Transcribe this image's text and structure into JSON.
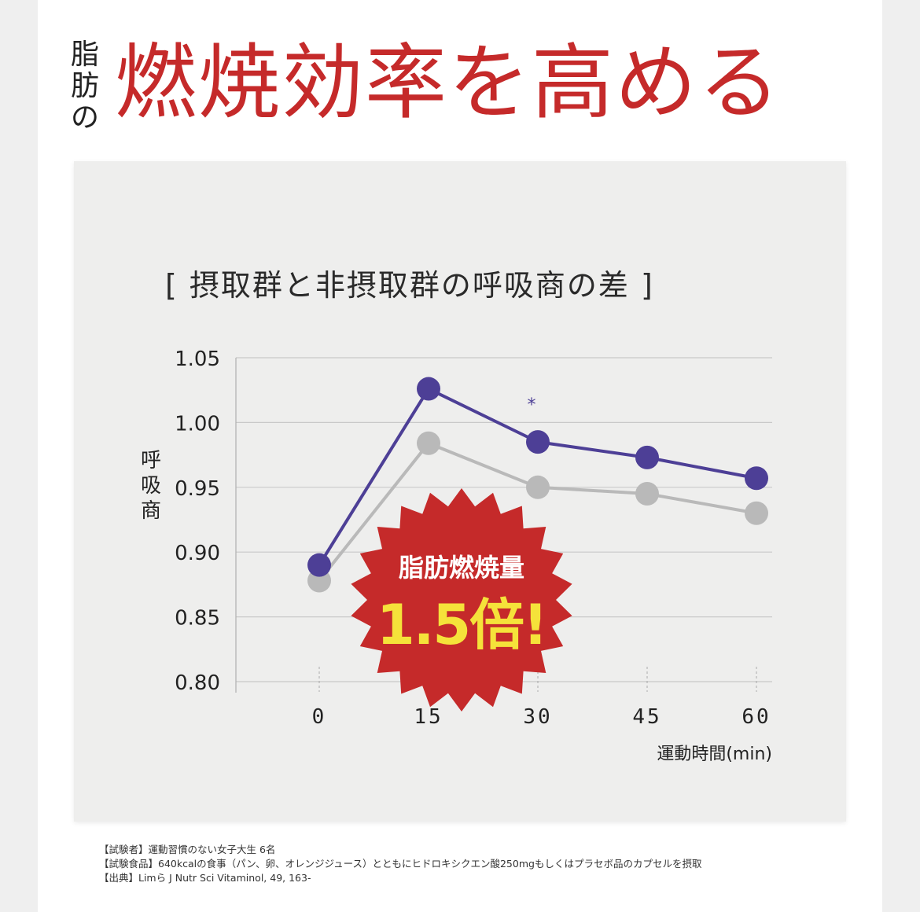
{
  "headline": {
    "small": [
      "脂",
      "肪",
      "の"
    ],
    "big": "燃焼効率を高める"
  },
  "colors": {
    "accent_red": "#c52a2a",
    "series_intake": "#4d3f96",
    "series_non_intake": "#b9b9b9",
    "badge_text": "#f5e23a"
  },
  "chart_data": {
    "type": "line",
    "title": "[ 摂取群と非摂取群の呼吸商の差 ]",
    "ylabel": "呼吸商",
    "xlabel": "運動時間(min)",
    "x": [
      0,
      15,
      30,
      45,
      60
    ],
    "x_tick_labels": [
      "0",
      "15",
      "30",
      "45",
      "60"
    ],
    "y_tick_labels": [
      "1.05",
      "1.00",
      "0.95",
      "0.90",
      "0.85",
      "0.80"
    ],
    "ylim": [
      0.8,
      1.05
    ],
    "grid": true,
    "series": [
      {
        "values": [
          0.89,
          1.026,
          0.985,
          0.973,
          0.957
        ]
      },
      {
        "values": [
          0.878,
          0.984,
          0.95,
          0.945,
          0.93
        ]
      }
    ],
    "annotations": [
      {
        "text": "*",
        "x": 30
      }
    ],
    "badge": {
      "line1": "脂肪燃焼量",
      "line2": "1.5倍!"
    }
  },
  "footnotes": [
    "【試験者】運動習慣のない女子大生 6名",
    "【試験食品】640kcalの食事（パン、卵、オレンジジュース）とともにヒドロキシクエン酸250mgもしくはプラセボ品のカプセルを摂取",
    "【出典】Limら J Nutr Sci Vitaminol, 49, 163-"
  ]
}
